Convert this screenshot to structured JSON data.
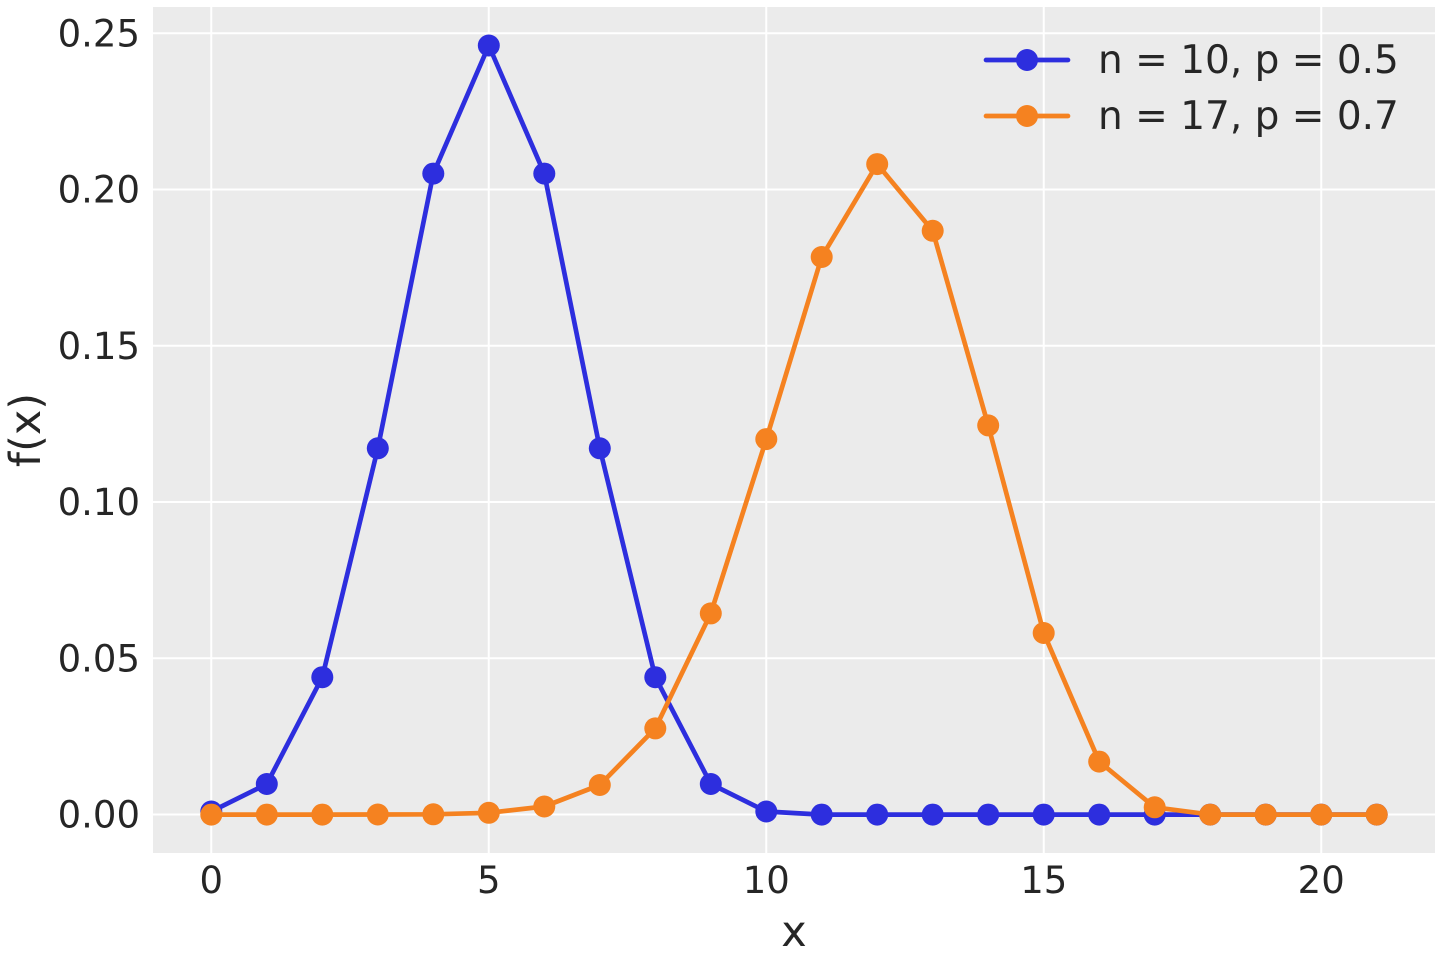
{
  "figure": {
    "background": "#ffffff",
    "plot_background": "#ebebeb",
    "grid_color": "#ffffff",
    "text_color": "#262626"
  },
  "chart_data": {
    "type": "line",
    "title": "",
    "xlabel": "x",
    "ylabel": "f(x)",
    "grid": true,
    "legend_position": "upper right",
    "legend_frame": false,
    "xlim": [
      -1.05,
      22.05
    ],
    "ylim": [
      -0.0123,
      0.2584
    ],
    "x": [
      0,
      1,
      2,
      3,
      4,
      5,
      6,
      7,
      8,
      9,
      10,
      11,
      12,
      13,
      14,
      15,
      16,
      17,
      18,
      19,
      20,
      21
    ],
    "series": [
      {
        "name": "n = 10, p = 0.5",
        "color": "#2d2ede",
        "marker": "circle",
        "values": [
          0.00098,
          0.00977,
          0.04395,
          0.11719,
          0.20508,
          0.24609,
          0.20508,
          0.11719,
          0.04395,
          0.00977,
          0.00098,
          0,
          0,
          0,
          0,
          0,
          0,
          0,
          0,
          0,
          0,
          0
        ]
      },
      {
        "name": "n = 17, p = 0.7",
        "color": "#f58220",
        "marker": "circle",
        "values": [
          0,
          0,
          0,
          1e-05,
          9e-05,
          0.00055,
          0.00258,
          0.00946,
          0.02758,
          0.06437,
          0.12015,
          0.1784,
          0.20813,
          0.18678,
          0.12452,
          0.05811,
          0.01695,
          0.00233,
          0,
          0,
          0,
          0
        ]
      }
    ],
    "xticks": {
      "values": [
        0,
        5,
        10,
        15,
        20
      ],
      "labels": [
        "0",
        "5",
        "10",
        "15",
        "20"
      ]
    },
    "yticks": {
      "values": [
        0,
        0.05,
        0.1,
        0.15,
        0.2,
        0.25
      ],
      "labels": [
        "0.00",
        "0.05",
        "0.10",
        "0.15",
        "0.20",
        "0.25"
      ]
    }
  }
}
